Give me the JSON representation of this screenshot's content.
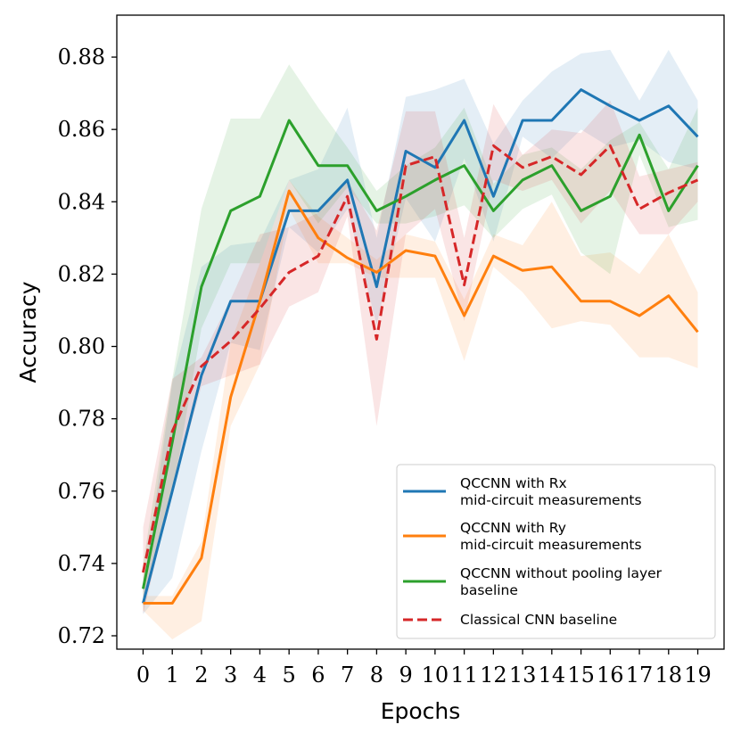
{
  "chart_data": {
    "type": "line",
    "title": "",
    "xlabel": "Epochs",
    "ylabel": "Accuracy",
    "x": [
      0,
      1,
      2,
      3,
      4,
      5,
      6,
      7,
      8,
      9,
      10,
      11,
      12,
      13,
      14,
      15,
      16,
      17,
      18,
      19
    ],
    "xlim": [
      -0.9,
      19.9
    ],
    "ylim": [
      0.7163,
      0.8916
    ],
    "yticks": [
      0.72,
      0.74,
      0.76,
      0.78,
      0.8,
      0.82,
      0.84,
      0.86,
      0.88
    ],
    "ytick_labels": [
      "0.72",
      "0.74",
      "0.76",
      "0.78",
      "0.80",
      "0.82",
      "0.84",
      "0.86",
      "0.88"
    ],
    "grid": false,
    "legend_position": "lower-right",
    "series": [
      {
        "name_lines": [
          "QCCNN with Rx",
          "mid-circuit measurements"
        ],
        "color": "#1f77b4",
        "dash": "solid",
        "values": [
          0.729,
          0.76,
          0.792,
          0.8125,
          0.8125,
          0.8375,
          0.8375,
          0.846,
          0.8165,
          0.854,
          0.8495,
          0.8625,
          0.8415,
          0.8625,
          0.8625,
          0.871,
          0.8665,
          0.8625,
          0.8665,
          0.858
        ],
        "band_upper": [
          0.733,
          0.79,
          0.822,
          0.828,
          0.829,
          0.846,
          0.849,
          0.866,
          0.83,
          0.869,
          0.871,
          0.874,
          0.856,
          0.868,
          0.876,
          0.881,
          0.882,
          0.868,
          0.882,
          0.868
        ],
        "band_lower": [
          0.726,
          0.736,
          0.771,
          0.801,
          0.799,
          0.833,
          0.826,
          0.838,
          0.806,
          0.841,
          0.829,
          0.852,
          0.829,
          0.858,
          0.852,
          0.86,
          0.855,
          0.857,
          0.851,
          0.849
        ]
      },
      {
        "name_lines": [
          "QCCNN with Ry",
          "mid-circuit measurements"
        ],
        "color": "#ff7f0e",
        "dash": "solid",
        "values": [
          0.729,
          0.729,
          0.7415,
          0.786,
          0.8125,
          0.843,
          0.83,
          0.8245,
          0.8205,
          0.8265,
          0.825,
          0.8085,
          0.825,
          0.821,
          0.822,
          0.8125,
          0.8125,
          0.8085,
          0.814,
          0.804
        ],
        "band_upper": [
          0.731,
          0.731,
          0.746,
          0.801,
          0.823,
          0.846,
          0.836,
          0.83,
          0.824,
          0.831,
          0.829,
          0.813,
          0.831,
          0.828,
          0.84,
          0.825,
          0.826,
          0.82,
          0.831,
          0.815
        ],
        "band_lower": [
          0.727,
          0.719,
          0.724,
          0.778,
          0.795,
          0.838,
          0.823,
          0.823,
          0.819,
          0.819,
          0.819,
          0.796,
          0.822,
          0.815,
          0.805,
          0.807,
          0.806,
          0.797,
          0.797,
          0.794
        ]
      },
      {
        "name_lines": [
          "QCCNN without pooling layer",
          "baseline"
        ],
        "color": "#2ca02c",
        "dash": "solid",
        "values": [
          0.733,
          0.7735,
          0.8165,
          0.8375,
          0.8415,
          0.8625,
          0.85,
          0.85,
          0.8375,
          0.8415,
          0.846,
          0.85,
          0.8375,
          0.846,
          0.85,
          0.8375,
          0.8415,
          0.8585,
          0.8375,
          0.85
        ],
        "band_upper": [
          0.74,
          0.791,
          0.838,
          0.863,
          0.863,
          0.878,
          0.866,
          0.855,
          0.843,
          0.85,
          0.855,
          0.866,
          0.845,
          0.853,
          0.855,
          0.849,
          0.857,
          0.862,
          0.849,
          0.866
        ],
        "band_lower": [
          0.728,
          0.759,
          0.805,
          0.823,
          0.823,
          0.846,
          0.834,
          0.844,
          0.834,
          0.834,
          0.836,
          0.839,
          0.83,
          0.838,
          0.842,
          0.826,
          0.82,
          0.853,
          0.833,
          0.835
        ]
      },
      {
        "name_lines": [
          "Classical CNN baseline"
        ],
        "color": "#d62728",
        "dash": "dashed",
        "values": [
          0.7375,
          0.7765,
          0.7945,
          0.8015,
          0.8105,
          0.8205,
          0.825,
          0.8415,
          0.802,
          0.85,
          0.8525,
          0.817,
          0.8555,
          0.8495,
          0.8525,
          0.8475,
          0.8555,
          0.838,
          0.8425,
          0.846
        ],
        "band_upper": [
          0.75,
          0.791,
          0.797,
          0.813,
          0.831,
          0.833,
          0.837,
          0.846,
          0.832,
          0.865,
          0.865,
          0.83,
          0.867,
          0.853,
          0.86,
          0.859,
          0.868,
          0.847,
          0.849,
          0.851
        ],
        "band_lower": [
          0.726,
          0.76,
          0.789,
          0.792,
          0.795,
          0.811,
          0.815,
          0.836,
          0.778,
          0.831,
          0.838,
          0.807,
          0.846,
          0.843,
          0.846,
          0.834,
          0.843,
          0.831,
          0.831,
          0.84
        ]
      }
    ]
  }
}
